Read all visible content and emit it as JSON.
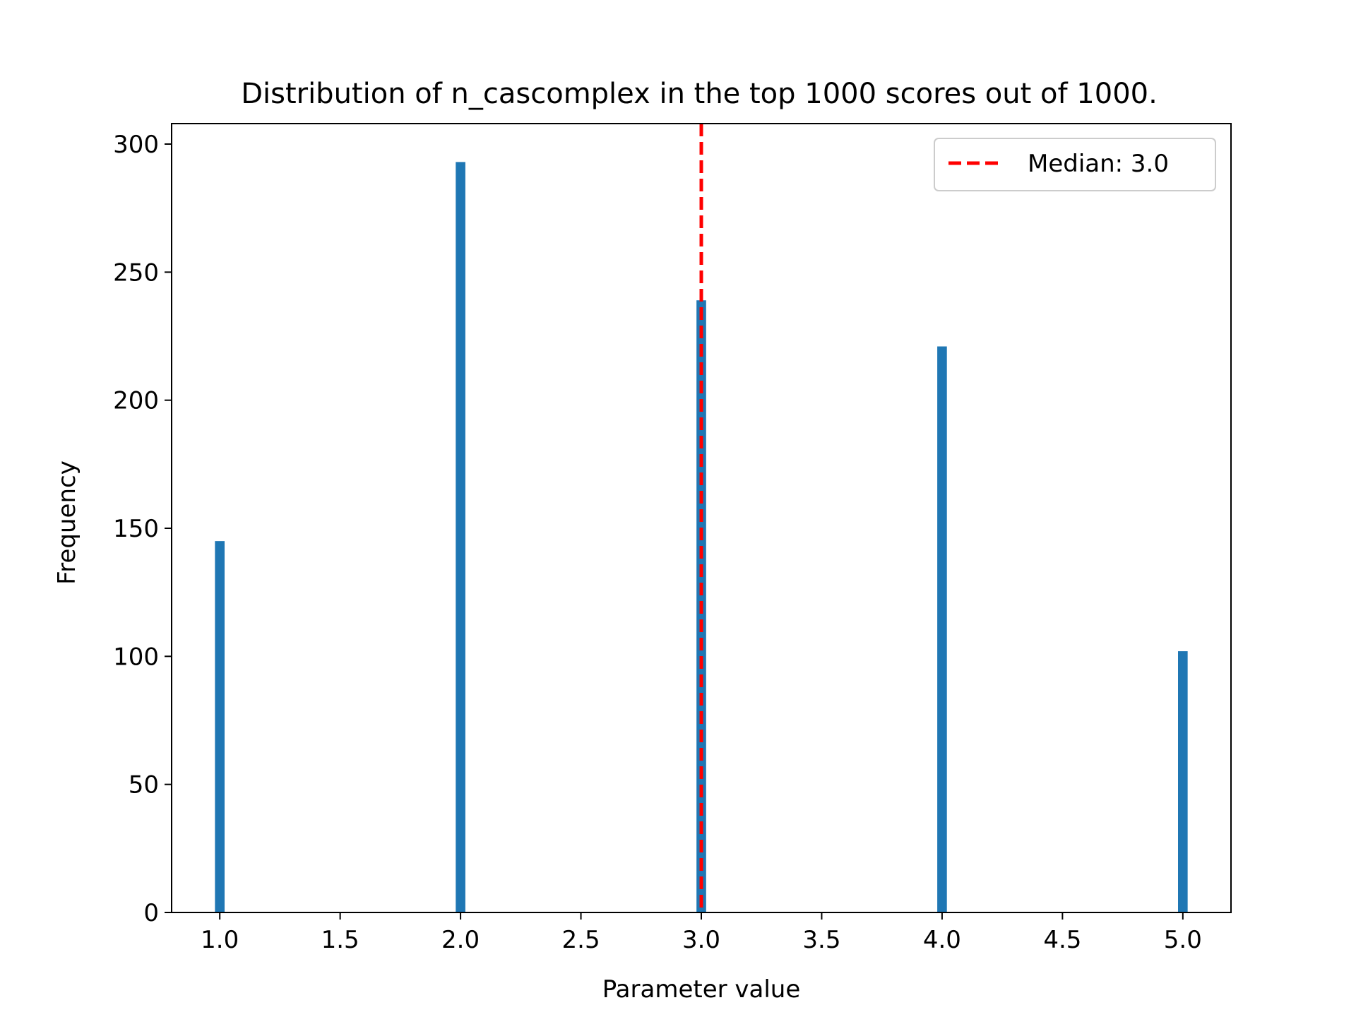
{
  "chart_data": {
    "type": "bar",
    "title": "Distribution of n_cascomplex in the top 1000 scores out of 1000.",
    "xlabel": "Parameter value",
    "ylabel": "Frequency",
    "xlim": [
      0.8,
      5.2
    ],
    "ylim": [
      0,
      308
    ],
    "bar_width": 0.04,
    "bar_color": "#1f77b4",
    "grid": false,
    "x_ticks": [
      1.0,
      1.5,
      2.0,
      2.5,
      3.0,
      3.5,
      4.0,
      4.5,
      5.0
    ],
    "x_tick_labels": [
      "1.0",
      "1.5",
      "2.0",
      "2.5",
      "3.0",
      "3.5",
      "4.0",
      "4.5",
      "5.0"
    ],
    "y_ticks": [
      0,
      50,
      100,
      150,
      200,
      250,
      300
    ],
    "y_tick_labels": [
      "0",
      "50",
      "100",
      "150",
      "200",
      "250",
      "300"
    ],
    "bars": [
      {
        "x": 1.0,
        "value": 145
      },
      {
        "x": 2.0,
        "value": 293
      },
      {
        "x": 3.0,
        "value": 239
      },
      {
        "x": 4.0,
        "value": 221
      },
      {
        "x": 5.0,
        "value": 102
      }
    ],
    "median": {
      "value": 3.0,
      "color": "#ff0000",
      "label": "Median: 3.0"
    },
    "legend": {
      "placement": "upper-right",
      "entries": [
        "Median: 3.0"
      ]
    }
  }
}
